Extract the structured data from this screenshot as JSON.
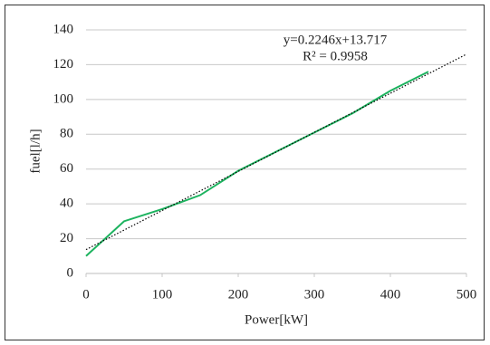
{
  "chart_data": {
    "type": "line",
    "xlabel": "Power[kW]",
    "ylabel": "fuel[l/h]",
    "annotations": [
      "y=0.2246x+13.717",
      "R² = 0.9958"
    ],
    "x": [
      0,
      50,
      100,
      150,
      200,
      250,
      300,
      350,
      400,
      450
    ],
    "series": [
      {
        "name": "fuel",
        "color": "#1db35f",
        "values": [
          10,
          30,
          37,
          45,
          59,
          70,
          81,
          92,
          105,
          116
        ]
      }
    ],
    "trendline": {
      "x": [
        0,
        500
      ],
      "values": [
        13.717,
        126.017
      ],
      "color": "#000000"
    },
    "xlim": [
      0,
      500
    ],
    "xticks": [
      0,
      100,
      200,
      300,
      400,
      500
    ],
    "ylim": [
      0,
      140
    ],
    "yticks": [
      0,
      20,
      40,
      60,
      80,
      100,
      120,
      140
    ],
    "grid": true
  }
}
